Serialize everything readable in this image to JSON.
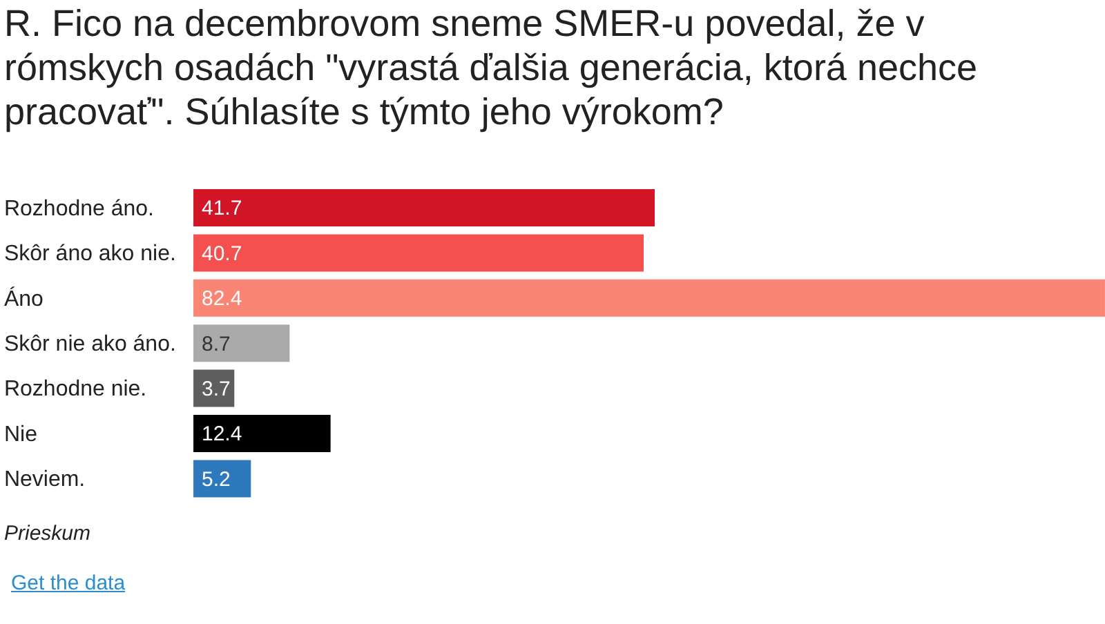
{
  "chart_data": {
    "type": "bar",
    "orientation": "horizontal",
    "title": "R. Fico na decembrovom sneme SMER-u povedal, že v rómskych osadách \"vyrastá ďalšia generácia, ktorá nechce pracovať\". Súhlasíte s týmto jeho výrokom?",
    "categories": [
      "Rozhodne áno.",
      "Skôr áno ako nie.",
      "Áno",
      "Skôr nie ako áno.",
      "Rozhodne nie.",
      "Nie",
      "Neviem."
    ],
    "values": [
      41.7,
      40.7,
      82.4,
      8.7,
      3.7,
      12.4,
      5.2
    ],
    "colors": [
      "#d31528",
      "#f45050",
      "#fa8575",
      "#aaaaaa",
      "#5e5e5e",
      "#000000",
      "#2d79bb"
    ],
    "data_labels": true,
    "annotations": [
      "Prieskum",
      "Get the data"
    ]
  }
}
